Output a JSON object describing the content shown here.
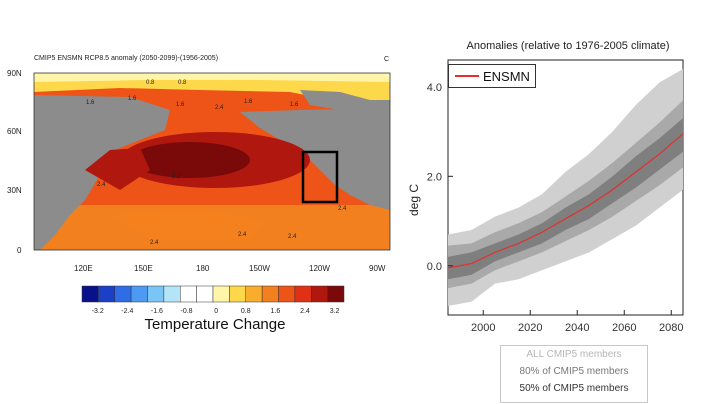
{
  "map": {
    "title": "CMIP5 ENSMN RCP8.5 anomaly (2050-2099)-(1956-2005)",
    "corner_label": "C",
    "lat_labels": [
      "90N",
      "60N",
      "30N",
      "0"
    ],
    "lon_labels": [
      "120E",
      "150E",
      "180",
      "150W",
      "120W",
      "90W"
    ],
    "contour_labels": [
      "0.8",
      "1.6",
      "1.6",
      "1.6",
      "1.6",
      "2.4",
      "1.6",
      "3.2",
      "2.4",
      "2.4",
      "2.4",
      "2.4",
      "2.4",
      "0.8"
    ],
    "colorbar": {
      "ticks": [
        "-3.2",
        "-2.4",
        "-1.6",
        "-0.8",
        "0",
        "0.8",
        "1.6",
        "2.4",
        "3.2"
      ],
      "colors": [
        "#08108a",
        "#1c3fc8",
        "#2f6de6",
        "#4d9af3",
        "#79c6f6",
        "#b3e5f8",
        "#ffffff",
        "#ffffff",
        "#fff5a8",
        "#fcd84a",
        "#f8ae2c",
        "#f3801e",
        "#ee5418",
        "#e03116",
        "#b0170f",
        "#7a0a0a"
      ],
      "title": "Temperature Change"
    },
    "land_color": "#8c8c8c",
    "highlight_box": "#000000"
  },
  "chart_data": {
    "type": "area",
    "title": "Anomalies (relative to 1976-2005 climate)",
    "ylabel": "deg C",
    "xlim": [
      1985,
      2085
    ],
    "ylim": [
      -1.1,
      4.6
    ],
    "xticks": [
      2000,
      2020,
      2040,
      2060,
      2080
    ],
    "yticks": [
      "0.0",
      "2.0",
      "4.0"
    ],
    "x": [
      1985,
      1995,
      2005,
      2015,
      2025,
      2035,
      2045,
      2055,
      2065,
      2075,
      2085
    ],
    "series": [
      {
        "name": "ENSMN",
        "values": [
          -0.05,
          0.05,
          0.3,
          0.5,
          0.75,
          1.05,
          1.35,
          1.7,
          2.1,
          2.5,
          2.95
        ]
      }
    ],
    "bands": [
      {
        "name": "ALL CMIP5 members",
        "lower": [
          -0.9,
          -0.8,
          -0.4,
          -0.3,
          -0.1,
          0.1,
          0.3,
          0.6,
          0.9,
          1.3,
          1.7
        ],
        "upper": [
          0.7,
          0.8,
          1.1,
          1.3,
          1.6,
          2.1,
          2.5,
          3.0,
          3.6,
          4.1,
          4.4
        ]
      },
      {
        "name": "80% of CMIP5 members",
        "lower": [
          -0.5,
          -0.4,
          -0.1,
          0.1,
          0.3,
          0.55,
          0.8,
          1.1,
          1.45,
          1.8,
          2.2
        ],
        "upper": [
          0.45,
          0.5,
          0.75,
          0.95,
          1.2,
          1.55,
          1.9,
          2.3,
          2.75,
          3.2,
          3.7
        ]
      },
      {
        "name": "50% of CMIP5 members",
        "lower": [
          -0.3,
          -0.2,
          0.1,
          0.3,
          0.5,
          0.8,
          1.05,
          1.4,
          1.75,
          2.15,
          2.55
        ],
        "upper": [
          0.2,
          0.3,
          0.5,
          0.7,
          0.95,
          1.3,
          1.6,
          2.0,
          2.45,
          2.85,
          3.3
        ]
      }
    ],
    "colors": {
      "line": "#e0312a",
      "all": "#d0d0d0",
      "p80": "#a9a9a9",
      "p50": "#7f7f7f"
    },
    "legend": {
      "line_label": "ENSMN",
      "placement": "top-left"
    },
    "band_legend": [
      "ALL CMIP5 members",
      "80% of CMIP5 members",
      "50% of CMIP5 members"
    ]
  }
}
